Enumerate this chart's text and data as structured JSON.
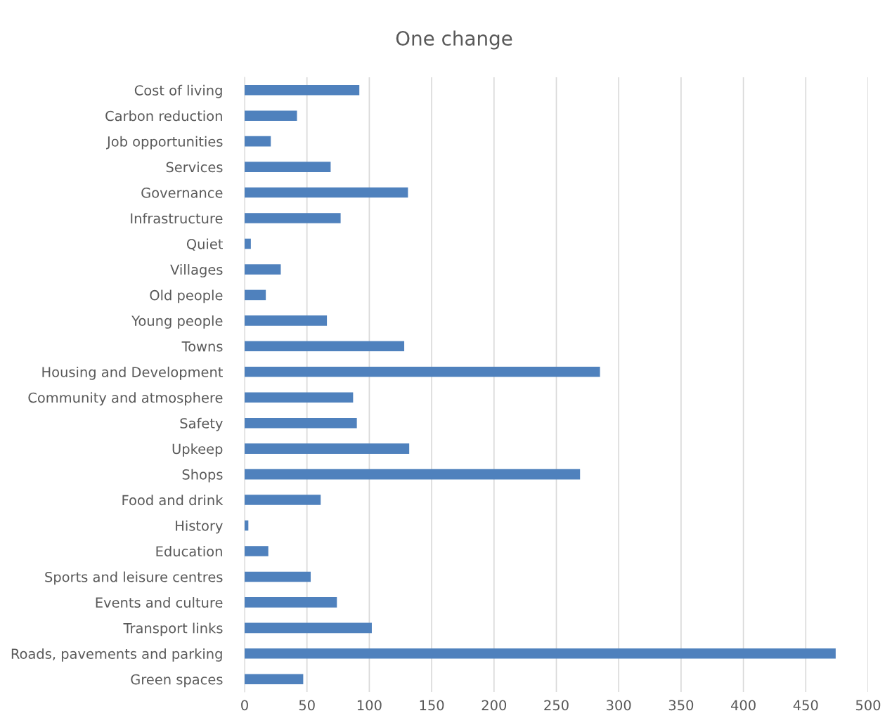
{
  "chart_data": {
    "type": "bar",
    "orientation": "horizontal",
    "title": "One change",
    "categories": [
      "Cost of living",
      "Carbon reduction",
      "Job opportunities",
      "Services",
      "Governance",
      "Infrastructure",
      "Quiet",
      "Villages",
      "Old people",
      "Young people",
      "Towns",
      "Housing and Development",
      "Community and atmosphere",
      "Safety",
      "Upkeep",
      "Shops",
      "Food and drink",
      "History",
      "Education",
      "Sports and leisure centres",
      "Events and culture",
      "Transport links",
      "Roads, pavements and parking",
      "Green spaces"
    ],
    "values": [
      92,
      42,
      21,
      69,
      131,
      77,
      5,
      29,
      17,
      66,
      128,
      285,
      87,
      90,
      132,
      269,
      61,
      3,
      19,
      53,
      74,
      102,
      474,
      47
    ],
    "color": "#4f81bd",
    "xlim": [
      0,
      500
    ],
    "xticks": [
      0,
      50,
      100,
      150,
      200,
      250,
      300,
      350,
      400,
      450,
      500
    ],
    "grid": "x"
  }
}
